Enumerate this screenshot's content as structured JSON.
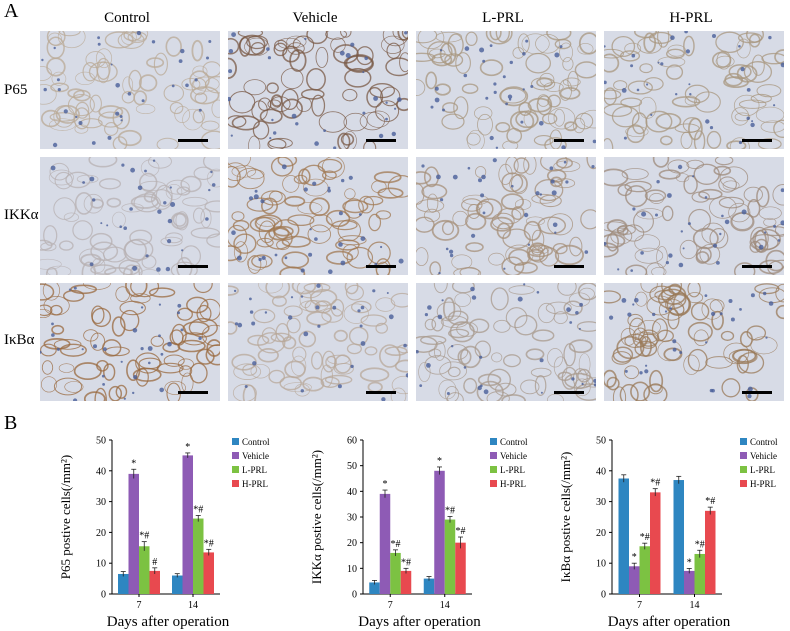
{
  "panelA": {
    "letter": "A",
    "columns": [
      "Control",
      "Vehicle",
      "L-PRL",
      "H-PRL"
    ],
    "rows": [
      "P65",
      "IKKα",
      "IκBα"
    ],
    "stain_colors": {
      "P65": [
        "#b9a996",
        "#7a5a45",
        "#a8977f",
        "#a8977f"
      ],
      "IKKα": [
        "#b7b0b2",
        "#a07852",
        "#a58f78",
        "#9d8a7a"
      ],
      "IκBα": [
        "#9a6a3f",
        "#b8a89a",
        "#a89a8c",
        "#9a7a58"
      ]
    }
  },
  "panelB": {
    "letter": "B"
  },
  "legend": {
    "labels": [
      "Control",
      "Vehicle",
      "L-PRL",
      "H-PRL"
    ],
    "colors": [
      "#2e86c1",
      "#8e5bb5",
      "#7cc242",
      "#e8494f"
    ]
  },
  "chart_data": [
    {
      "type": "bar",
      "categories": [
        "7",
        "14"
      ],
      "series": [
        {
          "name": "Control",
          "values": [
            6.5,
            6.0
          ],
          "errors": [
            0.8,
            0.6
          ]
        },
        {
          "name": "Vehicle",
          "values": [
            39,
            45
          ],
          "errors": [
            1.5,
            0.8
          ]
        },
        {
          "name": "L-PRL",
          "values": [
            15.5,
            24.5
          ],
          "errors": [
            1.5,
            1.0
          ]
        },
        {
          "name": "H-PRL",
          "values": [
            7.5,
            13.5
          ],
          "errors": [
            1.0,
            1.0
          ]
        }
      ],
      "annotations": [
        [
          "",
          ""
        ],
        [
          "*",
          "*"
        ],
        [
          "*#",
          "*#"
        ],
        [
          "#",
          "*#"
        ]
      ],
      "yticks": [
        0,
        10,
        20,
        30,
        40,
        50
      ],
      "ylim": [
        0,
        50
      ],
      "ylabel": "P65 postive cells(/mm²)",
      "xlabel": "Days after operation"
    },
    {
      "type": "bar",
      "categories": [
        "7",
        "14"
      ],
      "series": [
        {
          "name": "Control",
          "values": [
            4.5,
            6.0
          ],
          "errors": [
            0.8,
            0.8
          ]
        },
        {
          "name": "Vehicle",
          "values": [
            39,
            48
          ],
          "errors": [
            1.5,
            1.5
          ]
        },
        {
          "name": "L-PRL",
          "values": [
            16,
            29
          ],
          "errors": [
            1.2,
            1.2
          ]
        },
        {
          "name": "H-PRL",
          "values": [
            9,
            20
          ],
          "errors": [
            1.0,
            2.2
          ]
        }
      ],
      "annotations": [
        [
          "",
          ""
        ],
        [
          "*",
          "*"
        ],
        [
          "*#",
          "*#"
        ],
        [
          "*#",
          "*#"
        ]
      ],
      "yticks": [
        0,
        10,
        20,
        30,
        40,
        50,
        60
      ],
      "ylim": [
        0,
        60
      ],
      "ylabel": "IKKα postive cells(/mm²)",
      "xlabel": "Days after operation"
    },
    {
      "type": "bar",
      "categories": [
        "7",
        "14"
      ],
      "series": [
        {
          "name": "Control",
          "values": [
            37.5,
            37
          ],
          "errors": [
            1.2,
            1.2
          ]
        },
        {
          "name": "Vehicle",
          "values": [
            9,
            7.5
          ],
          "errors": [
            1.0,
            0.8
          ]
        },
        {
          "name": "L-PRL",
          "values": [
            15.5,
            13
          ],
          "errors": [
            1.0,
            1.2
          ]
        },
        {
          "name": "H-PRL",
          "values": [
            33,
            27
          ],
          "errors": [
            1.2,
            1.2
          ]
        }
      ],
      "annotations": [
        [
          "",
          ""
        ],
        [
          "*",
          "*"
        ],
        [
          "*#",
          "*#"
        ],
        [
          "*#",
          "*#"
        ]
      ],
      "yticks": [
        0,
        10,
        20,
        30,
        40,
        50
      ],
      "ylim": [
        0,
        50
      ],
      "ylabel": "IκBα postive cells(/mm²)",
      "xlabel": "Days after operation"
    }
  ]
}
